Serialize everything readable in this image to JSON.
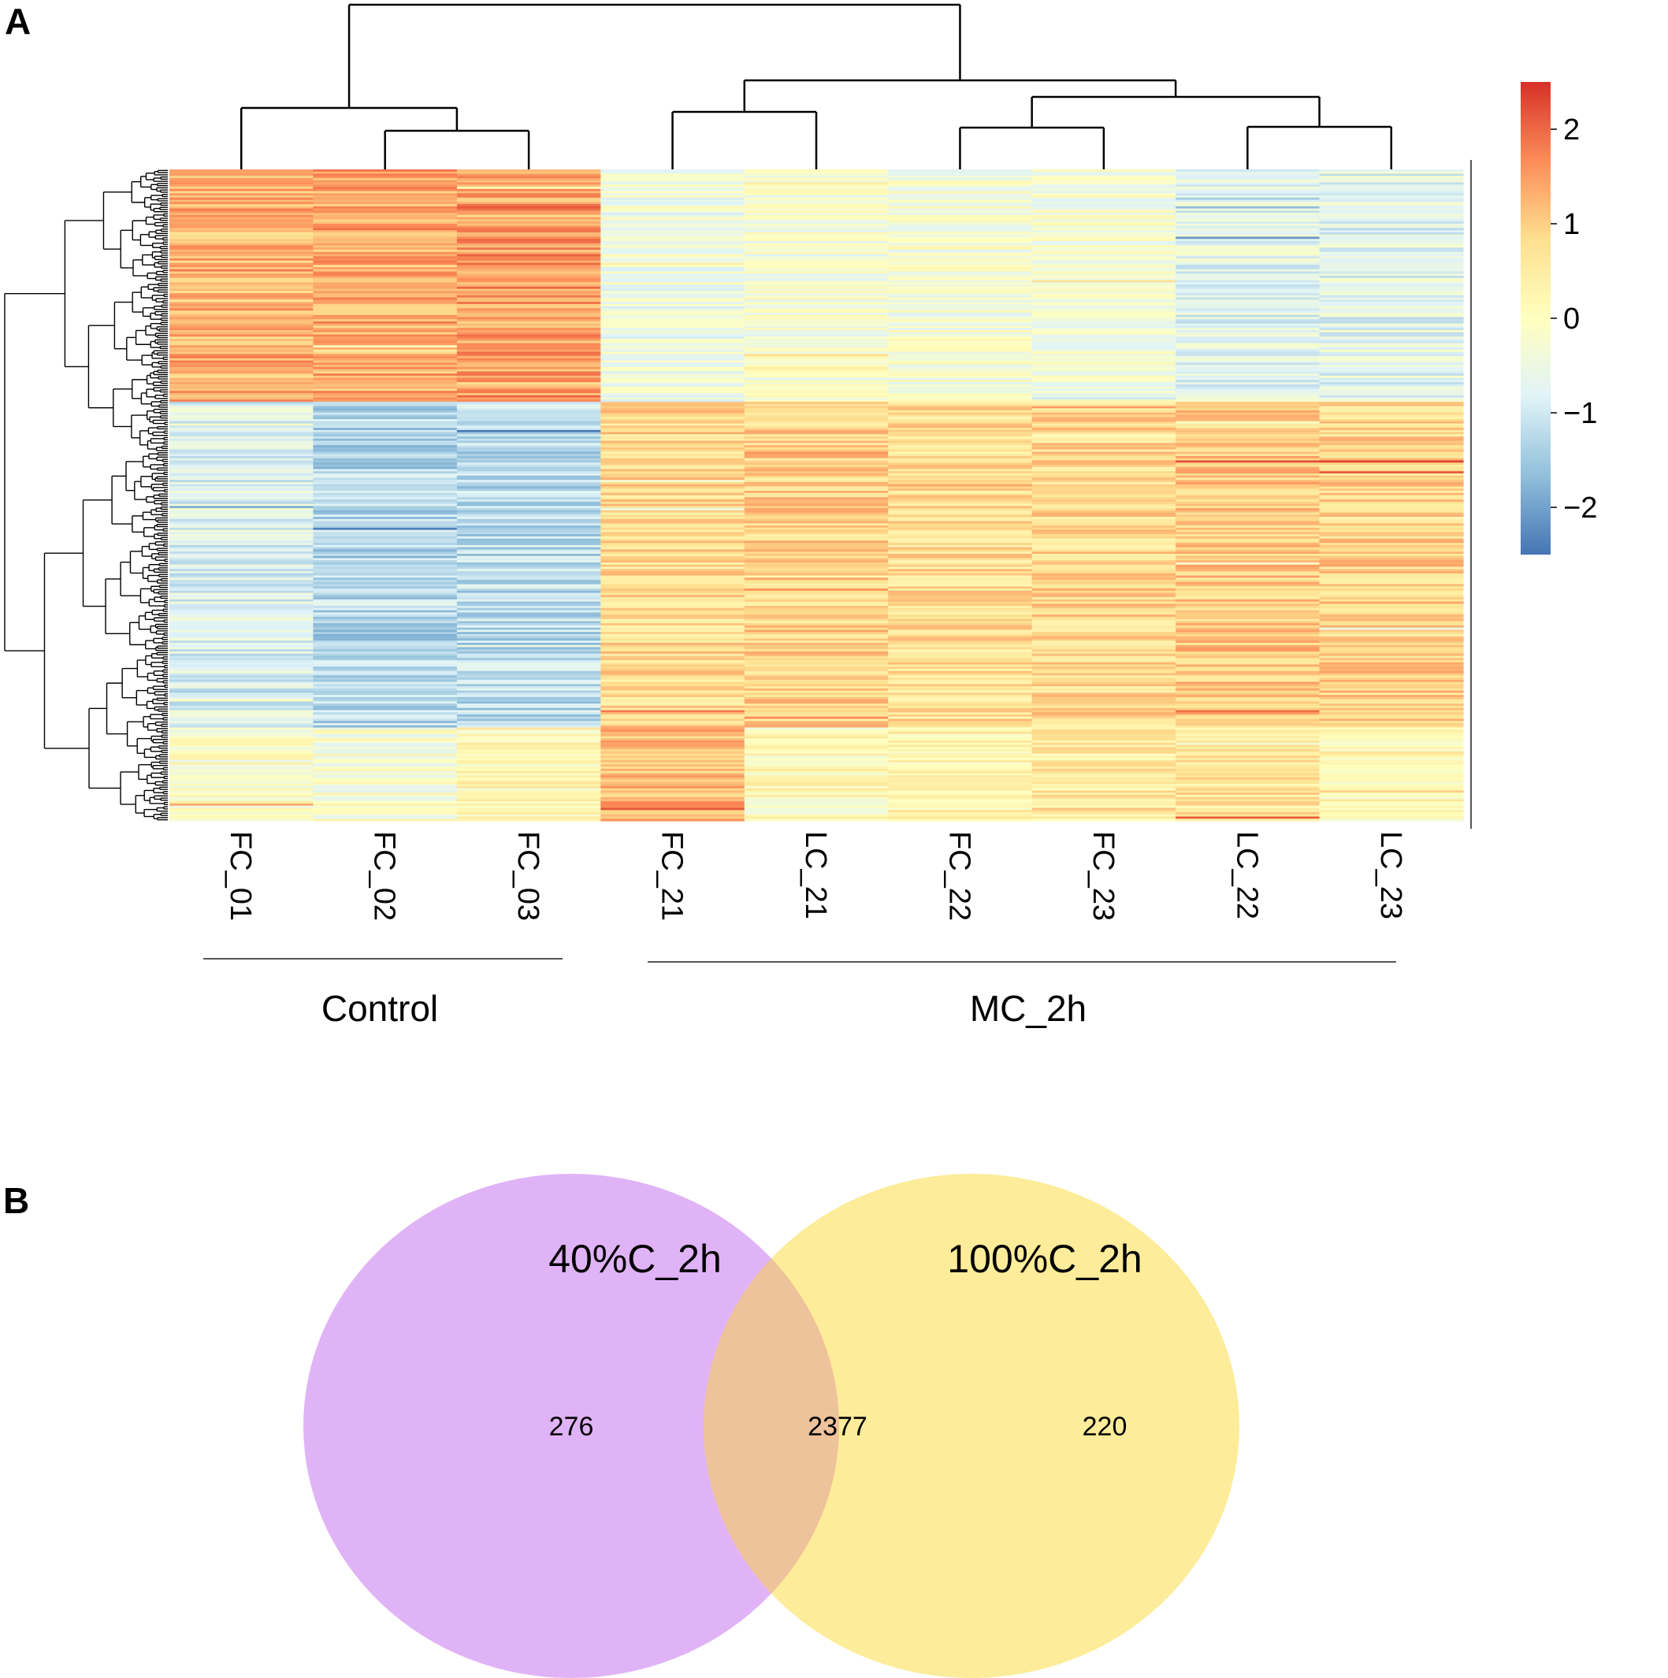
{
  "panels": {
    "a_label": "A",
    "b_label": "B"
  },
  "chart_data": [
    {
      "type": "heatmap",
      "title": "",
      "samples": [
        "FC_01",
        "FC_02",
        "FC_03",
        "FC_21",
        "LC_21",
        "FC_22",
        "FC_23",
        "LC_22",
        "LC_23"
      ],
      "groups": [
        {
          "name": "Control",
          "samples": [
            "FC_01",
            "FC_02",
            "FC_03"
          ]
        },
        {
          "name": "MC_2h",
          "samples": [
            "FC_21",
            "LC_21",
            "FC_22",
            "FC_23",
            "LC_22",
            "LC_23"
          ]
        }
      ],
      "row_clusters": [
        {
          "name": "cluster_1",
          "fraction": 0.355,
          "means": [
            1.3,
            1.4,
            1.5,
            -0.4,
            -0.3,
            -0.3,
            -0.3,
            -0.7,
            -0.7
          ]
        },
        {
          "name": "cluster_2",
          "fraction": 0.5,
          "means": [
            -0.8,
            -1.3,
            -1.2,
            0.8,
            0.9,
            0.7,
            0.8,
            1.0,
            0.9
          ]
        },
        {
          "name": "cluster_3",
          "fraction": 0.145,
          "means": [
            -0.1,
            -0.2,
            0.2,
            1.2,
            0.1,
            0.3,
            0.5,
            0.6,
            0.2
          ]
        }
      ],
      "column_dendrogram": "((FC_01,(FC_02,FC_03)),((FC_21,LC_21),((FC_22,FC_23),(LC_22,LC_23))))",
      "colorbar": {
        "range": [
          -2.5,
          2.5
        ],
        "ticks": [
          2,
          1,
          0,
          -1,
          -2
        ],
        "tick_labels": [
          "2",
          "1",
          "0",
          "−1",
          "−2"
        ],
        "colors": [
          "#4575b4",
          "#91bfdb",
          "#e0f3f8",
          "#ffffbf",
          "#fee090",
          "#fc8d59",
          "#d73027"
        ]
      }
    },
    {
      "type": "venn",
      "sets": [
        {
          "name": "40%C_2h",
          "color": "#e0b3f7",
          "only": 276
        },
        {
          "name": "100%C_2h",
          "color": "#fdec99",
          "only": 220
        }
      ],
      "intersection": 2377,
      "intersection_color": "#eec29a"
    }
  ]
}
